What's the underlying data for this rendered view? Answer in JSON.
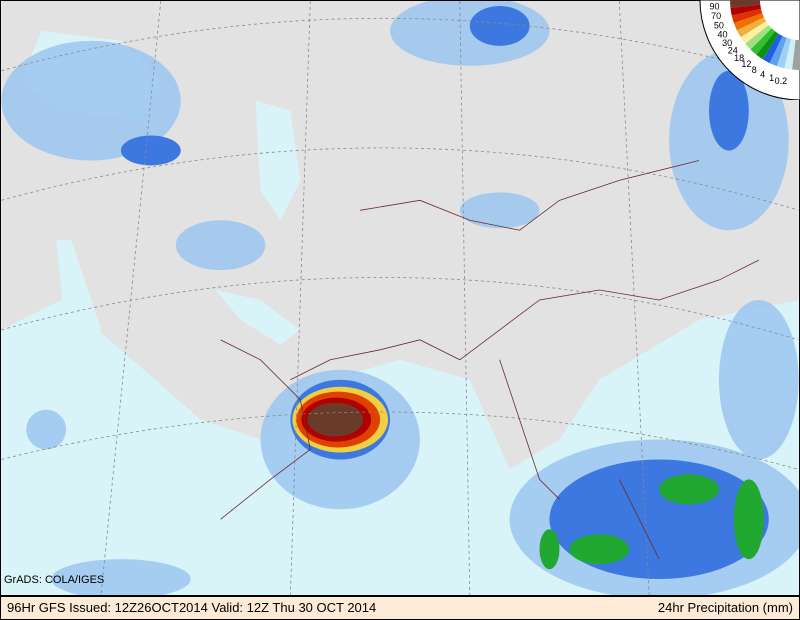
{
  "map": {
    "credit": "GrADS: COLA/IGES",
    "footer_left": "96Hr GFS Issued: 12Z26OCT2014 Valid: 12Z Thu 30 OCT 2014",
    "footer_right": "24hr Precipitation (mm)",
    "legend": {
      "labels": [
        "90",
        "70",
        "50",
        "40",
        "30",
        "24",
        "18",
        "12",
        "8",
        "4",
        "1",
        "0.2"
      ],
      "colors": [
        "#6b3b2a",
        "#b00000",
        "#e03000",
        "#f07000",
        "#f0b040",
        "#fff0a0",
        "#a0e080",
        "#30c030",
        "#109010",
        "#2060e0",
        "#60a0f0",
        "#a0d0f0",
        "#d0f0f8",
        "#a0a0a0"
      ]
    },
    "colors": {
      "land": "#e4e4e4",
      "ocean": "#d8f4f8",
      "borders": "#6b2a2a"
    }
  }
}
